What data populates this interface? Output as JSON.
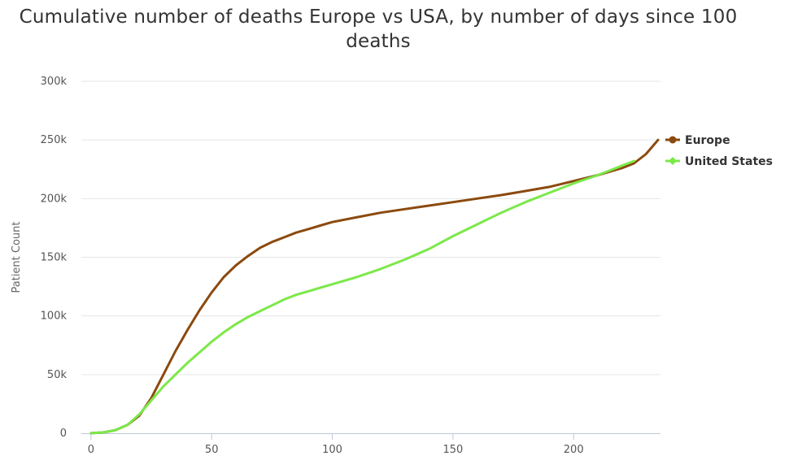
{
  "chart_data": {
    "type": "line",
    "title": "Cumulative number of deaths Europe vs USA, by number of days since 100 deaths",
    "xlabel": "",
    "ylabel": "Patient Count",
    "xlim": [
      -4,
      236
    ],
    "ylim": [
      0,
      300000
    ],
    "x_ticks": [
      0,
      50,
      100,
      150,
      200
    ],
    "y_ticks": [
      0,
      50000,
      100000,
      150000,
      200000,
      250000,
      300000
    ],
    "y_tick_labels": [
      "0",
      "50k",
      "100k",
      "150k",
      "200k",
      "250k",
      "300k"
    ],
    "grid": true,
    "legend_position": "right",
    "series": [
      {
        "name": "Europe",
        "color": "#8B4A0E",
        "marker": "circle",
        "points": [
          [
            0,
            100
          ],
          [
            5,
            700
          ],
          [
            10,
            2500
          ],
          [
            15,
            7000
          ],
          [
            20,
            15000
          ],
          [
            25,
            30000
          ],
          [
            30,
            50000
          ],
          [
            35,
            70000
          ],
          [
            40,
            88000
          ],
          [
            45,
            105000
          ],
          [
            50,
            120000
          ],
          [
            55,
            133000
          ],
          [
            60,
            143000
          ],
          [
            65,
            151000
          ],
          [
            70,
            158000
          ],
          [
            75,
            163000
          ],
          [
            80,
            167000
          ],
          [
            85,
            171000
          ],
          [
            90,
            174000
          ],
          [
            95,
            177000
          ],
          [
            100,
            180000
          ],
          [
            110,
            184000
          ],
          [
            120,
            188000
          ],
          [
            130,
            191000
          ],
          [
            140,
            194000
          ],
          [
            150,
            197000
          ],
          [
            160,
            200000
          ],
          [
            170,
            203000
          ],
          [
            180,
            206500
          ],
          [
            190,
            210000
          ],
          [
            200,
            215000
          ],
          [
            210,
            220000
          ],
          [
            220,
            226000
          ],
          [
            225,
            230000
          ],
          [
            230,
            238000
          ],
          [
            235,
            250000
          ]
        ]
      },
      {
        "name": "United States",
        "color": "#7CE84A",
        "marker": "diamond",
        "points": [
          [
            0,
            100
          ],
          [
            5,
            700
          ],
          [
            10,
            2500
          ],
          [
            15,
            7000
          ],
          [
            20,
            16000
          ],
          [
            25,
            28000
          ],
          [
            30,
            40000
          ],
          [
            35,
            50000
          ],
          [
            40,
            60000
          ],
          [
            45,
            69000
          ],
          [
            50,
            78000
          ],
          [
            55,
            86000
          ],
          [
            60,
            93000
          ],
          [
            65,
            99000
          ],
          [
            70,
            104000
          ],
          [
            75,
            109000
          ],
          [
            80,
            114000
          ],
          [
            85,
            118000
          ],
          [
            90,
            121000
          ],
          [
            95,
            124000
          ],
          [
            100,
            127000
          ],
          [
            110,
            133000
          ],
          [
            120,
            140000
          ],
          [
            130,
            148000
          ],
          [
            140,
            157000
          ],
          [
            150,
            168000
          ],
          [
            160,
            178000
          ],
          [
            170,
            188000
          ],
          [
            180,
            197000
          ],
          [
            190,
            205000
          ],
          [
            200,
            213000
          ],
          [
            210,
            220000
          ],
          [
            220,
            228000
          ],
          [
            225,
            232000
          ]
        ]
      }
    ]
  }
}
